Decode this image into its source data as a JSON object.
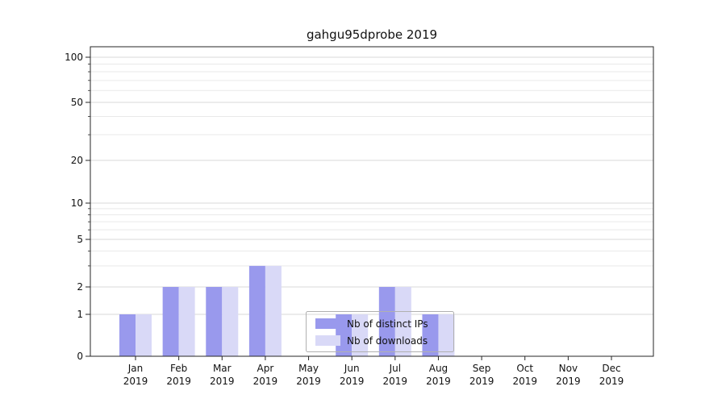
{
  "figure": {
    "background": "#ffffff"
  },
  "chart_data": {
    "type": "bar",
    "title": "gahgu95dprobe 2019",
    "categories": [
      "Jan 2019",
      "Feb 2019",
      "Mar 2019",
      "Apr 2019",
      "May 2019",
      "Jun 2019",
      "Jul 2019",
      "Aug 2019",
      "Sep 2019",
      "Oct 2019",
      "Nov 2019",
      "Dec 2019"
    ],
    "series": [
      {
        "name": "Nb of distinct IPs",
        "color": "#9999ed",
        "values": [
          1,
          2,
          2,
          3,
          0,
          1,
          2,
          1,
          0,
          0,
          0,
          0
        ]
      },
      {
        "name": "Nb of downloads",
        "color": "#d9d9f7",
        "values": [
          1,
          2,
          2,
          3,
          0,
          1,
          2,
          1,
          0,
          0,
          0,
          0
        ]
      }
    ],
    "yscale": "log-like-with-zero",
    "y_ticks": [
      0,
      1,
      2,
      5,
      10,
      20,
      50,
      100
    ],
    "y_minor_ticks": [
      3,
      4,
      6,
      7,
      8,
      9,
      30,
      40,
      60,
      70,
      80,
      90
    ],
    "ylim": [
      0,
      110
    ],
    "xlabel": "",
    "ylabel": "",
    "grid": "horizontal",
    "legend_position": "bottom-center",
    "colors": {
      "spine": "#262626",
      "grid_major": "#d9d9d9",
      "grid_minor": "#e9e9e9",
      "legend_border": "#b0b0b0"
    }
  }
}
